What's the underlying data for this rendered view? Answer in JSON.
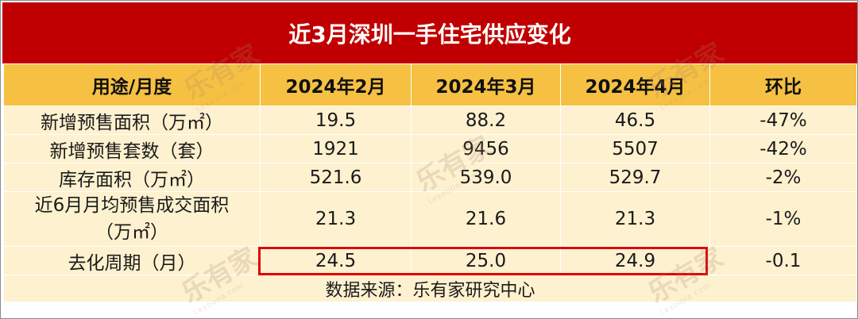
{
  "title": "近3月深圳一手住宅供应变化",
  "headers": [
    "用途/月度",
    "2024年2月",
    "2024年3月",
    "2024年4月",
    "环比"
  ],
  "rows": [
    {
      "label": "新增预售面积（万㎡）",
      "feb": "19.5",
      "mar": "88.2",
      "apr": "46.5",
      "mom": "-47%"
    },
    {
      "label": "新增预售套数（套）",
      "feb": "1921",
      "mar": "9456",
      "apr": "5507",
      "mom": "-42%"
    },
    {
      "label": "库存面积（万㎡）",
      "feb": "521.6",
      "mar": "539.0",
      "apr": "529.7",
      "mom": "-2%"
    },
    {
      "label_line1": "近6月月均预售成交面积",
      "label_line2": "（万㎡）",
      "feb": "21.3",
      "mar": "21.6",
      "apr": "21.3",
      "mom": "-1%"
    },
    {
      "label": "去化周期（月）",
      "feb": "24.5",
      "mar": "25.0",
      "apr": "24.9",
      "mom": "-0.1"
    }
  ],
  "source": "数据来源：乐有家研究中心",
  "watermark": {
    "text": "乐有家",
    "sub": "Leyoujia.com"
  },
  "colors": {
    "title_bg": "#c00000",
    "header_bg": "#f6c142",
    "body_bg": "#fdf1cf",
    "highlight": "#e00000"
  }
}
